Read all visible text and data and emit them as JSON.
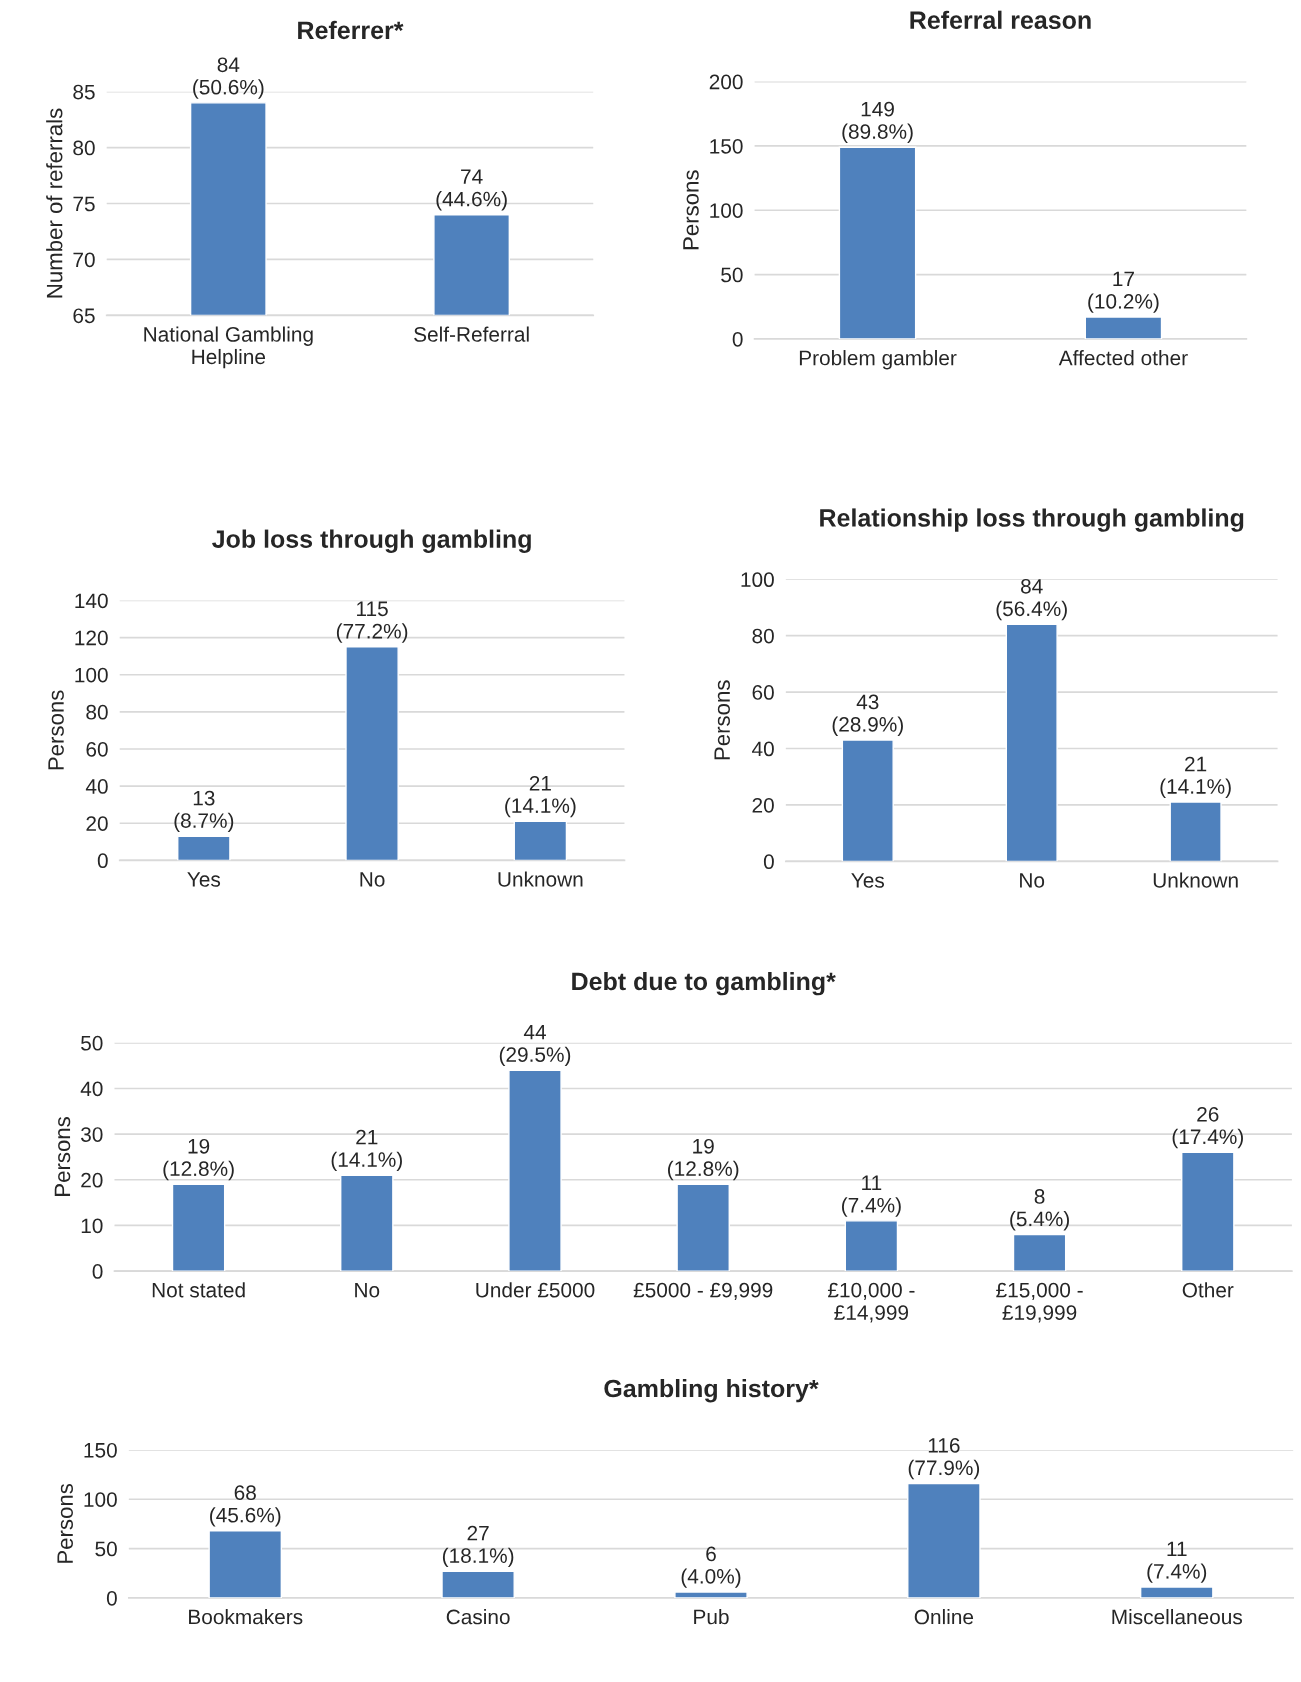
{
  "chart_data": [
    {
      "type": "bar",
      "title": "Referrer*",
      "ylabel": "Number of referrals",
      "categories": [
        "National Gambling\nHelpline",
        "Self-Referral"
      ],
      "values": [
        84,
        74
      ],
      "value_labels": [
        "84\n(50.6%)",
        "74\n(44.6%)"
      ],
      "color": "#4f81bd",
      "ylim": [
        65,
        85
      ],
      "yticks": [
        65,
        70,
        75,
        80,
        85
      ],
      "grid": "y"
    },
    {
      "type": "bar",
      "title": "Referral reason",
      "ylabel": "Persons",
      "categories": [
        "Problem gambler",
        "Affected other"
      ],
      "values": [
        149,
        17
      ],
      "value_labels": [
        "149\n(89.8%)",
        "17\n(10.2%)"
      ],
      "color": "#4f81bd",
      "ylim": [
        0,
        200
      ],
      "yticks": [
        0,
        50,
        100,
        150,
        200
      ],
      "grid": "y"
    },
    {
      "type": "bar",
      "title": "Job loss through gambling",
      "ylabel": "Persons",
      "categories": [
        "Yes",
        "No",
        "Unknown"
      ],
      "values": [
        13,
        115,
        21
      ],
      "value_labels": [
        "13\n(8.7%)",
        "115\n(77.2%)",
        "21\n(14.1%)"
      ],
      "color": "#4f81bd",
      "ylim": [
        0,
        140
      ],
      "yticks": [
        0,
        20,
        40,
        60,
        80,
        100,
        120,
        140
      ],
      "grid": "y"
    },
    {
      "type": "bar",
      "title": "Relationship loss through gambling",
      "ylabel": "Persons",
      "categories": [
        "Yes",
        "No",
        "Unknown"
      ],
      "values": [
        43,
        84,
        21
      ],
      "value_labels": [
        "43\n(28.9%)",
        "84\n(56.4%)",
        "21\n(14.1%)"
      ],
      "color": "#4f81bd",
      "ylim": [
        0,
        100
      ],
      "yticks": [
        0,
        20,
        40,
        60,
        80,
        100
      ],
      "grid": "y"
    },
    {
      "type": "bar",
      "title": "Debt due to gambling*",
      "ylabel": "Persons",
      "categories": [
        "Not stated",
        "No",
        "Under £5000",
        "£5000 - £9,999",
        "£10,000 -\n£14,999",
        "£15,000 -\n£19,999",
        "Other"
      ],
      "values": [
        19,
        21,
        44,
        19,
        11,
        8,
        26
      ],
      "value_labels": [
        "19\n(12.8%)",
        "21\n(14.1%)",
        "44\n(29.5%)",
        "19\n(12.8%)",
        "11\n(7.4%)",
        "8\n(5.4%)",
        "26\n(17.4%)"
      ],
      "color": "#4f81bd",
      "ylim": [
        0,
        50
      ],
      "yticks": [
        0,
        10,
        20,
        30,
        40,
        50
      ],
      "grid": "y"
    },
    {
      "type": "bar",
      "title": "Gambling history*",
      "ylabel": "Persons",
      "categories": [
        "Bookmakers",
        "Casino",
        "Pub",
        "Online",
        "Miscellaneous"
      ],
      "values": [
        68,
        27,
        6,
        116,
        11
      ],
      "value_labels": [
        "68\n(45.6%)",
        "27\n(18.1%)",
        "6\n(4.0%)",
        "116\n(77.9%)",
        "11\n(7.4%)"
      ],
      "color": "#4f81bd",
      "ylim": [
        0,
        150
      ],
      "yticks": [
        0,
        50,
        100,
        150
      ],
      "grid": "y"
    }
  ]
}
